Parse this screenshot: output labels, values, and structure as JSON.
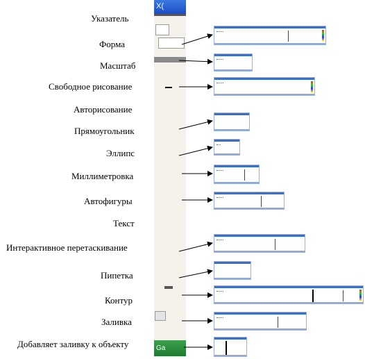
{
  "toolbox": {
    "title_glyph": "X(",
    "footer_glyph": "Ga"
  },
  "tools": [
    {
      "label": "Указатель"
    },
    {
      "label": "Форма"
    },
    {
      "label": "Масштаб"
    },
    {
      "label": "Свободное рисование"
    },
    {
      "label": "Авторисование"
    },
    {
      "label": "Прямоугольник"
    },
    {
      "label": "Эллипс"
    },
    {
      "label": "Миллиметровка"
    },
    {
      "label": "Автофигуры"
    },
    {
      "label": "Текст"
    },
    {
      "label": "Интерактивное перетаскивание"
    },
    {
      "label": "Пипетка"
    },
    {
      "label": "Контур"
    },
    {
      "label": "Заливка"
    },
    {
      "label": "Добавляет заливку к объекту"
    }
  ],
  "colors": {
    "titlebar": "#1d4fc4",
    "bar_border": "#9ab2d8",
    "taskbar": "#1f7a2f"
  }
}
